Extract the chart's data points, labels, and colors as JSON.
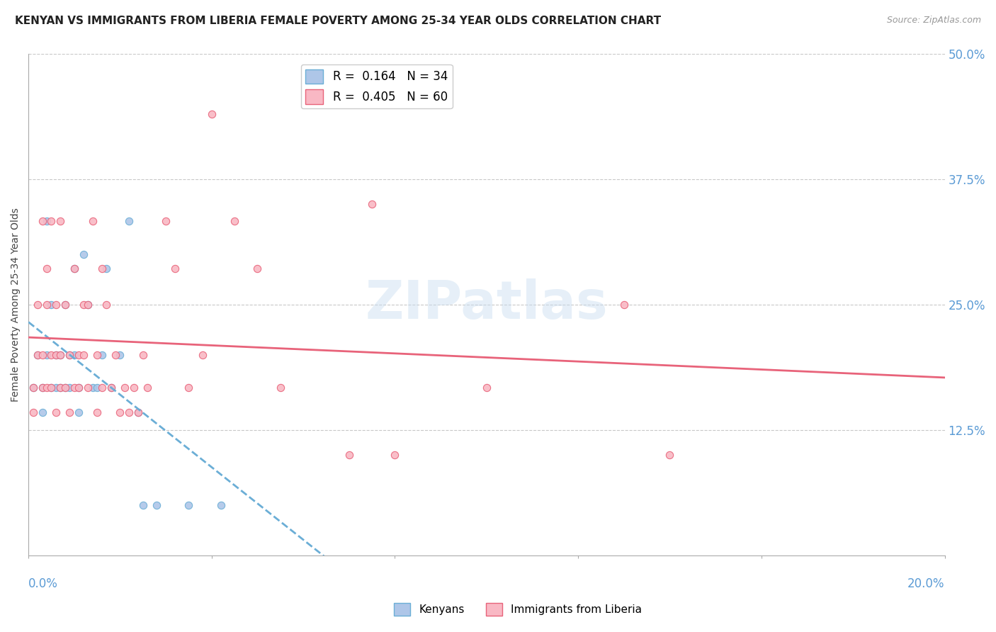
{
  "title": "KENYAN VS IMMIGRANTS FROM LIBERIA FEMALE POVERTY AMONG 25-34 YEAR OLDS CORRELATION CHART",
  "source": "Source: ZipAtlas.com",
  "ylabel": "Female Poverty Among 25-34 Year Olds",
  "watermark": "ZIPatlas",
  "xlim": [
    0.0,
    0.2
  ],
  "ylim": [
    0.0,
    0.5
  ],
  "yticks": [
    0.125,
    0.25,
    0.375,
    0.5
  ],
  "ytick_labels": [
    "12.5%",
    "25.0%",
    "37.5%",
    "50.0%"
  ],
  "kenyan_color": "#aec6e8",
  "kenyan_edge": "#6baed6",
  "liberia_color": "#f9b8c4",
  "liberia_edge": "#e8637a",
  "kenyan_scatter": [
    [
      0.001,
      0.167
    ],
    [
      0.002,
      0.2
    ],
    [
      0.003,
      0.143
    ],
    [
      0.003,
      0.167
    ],
    [
      0.004,
      0.333
    ],
    [
      0.004,
      0.2
    ],
    [
      0.005,
      0.167
    ],
    [
      0.005,
      0.25
    ],
    [
      0.006,
      0.2
    ],
    [
      0.006,
      0.167
    ],
    [
      0.007,
      0.167
    ],
    [
      0.007,
      0.2
    ],
    [
      0.008,
      0.25
    ],
    [
      0.008,
      0.167
    ],
    [
      0.009,
      0.2
    ],
    [
      0.009,
      0.167
    ],
    [
      0.01,
      0.286
    ],
    [
      0.01,
      0.2
    ],
    [
      0.011,
      0.167
    ],
    [
      0.011,
      0.143
    ],
    [
      0.012,
      0.3
    ],
    [
      0.013,
      0.25
    ],
    [
      0.014,
      0.167
    ],
    [
      0.015,
      0.167
    ],
    [
      0.016,
      0.2
    ],
    [
      0.017,
      0.286
    ],
    [
      0.018,
      0.167
    ],
    [
      0.02,
      0.2
    ],
    [
      0.022,
      0.333
    ],
    [
      0.024,
      0.143
    ],
    [
      0.025,
      0.05
    ],
    [
      0.028,
      0.05
    ],
    [
      0.035,
      0.05
    ],
    [
      0.042,
      0.05
    ]
  ],
  "liberia_scatter": [
    [
      0.001,
      0.143
    ],
    [
      0.001,
      0.167
    ],
    [
      0.002,
      0.2
    ],
    [
      0.002,
      0.25
    ],
    [
      0.003,
      0.333
    ],
    [
      0.003,
      0.167
    ],
    [
      0.003,
      0.2
    ],
    [
      0.004,
      0.167
    ],
    [
      0.004,
      0.25
    ],
    [
      0.004,
      0.286
    ],
    [
      0.005,
      0.333
    ],
    [
      0.005,
      0.167
    ],
    [
      0.005,
      0.2
    ],
    [
      0.006,
      0.2
    ],
    [
      0.006,
      0.143
    ],
    [
      0.006,
      0.25
    ],
    [
      0.007,
      0.167
    ],
    [
      0.007,
      0.2
    ],
    [
      0.007,
      0.333
    ],
    [
      0.008,
      0.25
    ],
    [
      0.008,
      0.167
    ],
    [
      0.009,
      0.143
    ],
    [
      0.009,
      0.2
    ],
    [
      0.01,
      0.167
    ],
    [
      0.01,
      0.286
    ],
    [
      0.011,
      0.2
    ],
    [
      0.011,
      0.167
    ],
    [
      0.012,
      0.25
    ],
    [
      0.012,
      0.2
    ],
    [
      0.013,
      0.167
    ],
    [
      0.013,
      0.25
    ],
    [
      0.014,
      0.333
    ],
    [
      0.015,
      0.2
    ],
    [
      0.015,
      0.143
    ],
    [
      0.016,
      0.286
    ],
    [
      0.016,
      0.167
    ],
    [
      0.017,
      0.25
    ],
    [
      0.018,
      0.167
    ],
    [
      0.019,
      0.2
    ],
    [
      0.02,
      0.143
    ],
    [
      0.021,
      0.167
    ],
    [
      0.022,
      0.143
    ],
    [
      0.023,
      0.167
    ],
    [
      0.024,
      0.143
    ],
    [
      0.025,
      0.2
    ],
    [
      0.026,
      0.167
    ],
    [
      0.03,
      0.333
    ],
    [
      0.032,
      0.286
    ],
    [
      0.035,
      0.167
    ],
    [
      0.038,
      0.2
    ],
    [
      0.04,
      0.44
    ],
    [
      0.045,
      0.333
    ],
    [
      0.05,
      0.286
    ],
    [
      0.055,
      0.167
    ],
    [
      0.07,
      0.1
    ],
    [
      0.075,
      0.35
    ],
    [
      0.08,
      0.1
    ],
    [
      0.1,
      0.167
    ],
    [
      0.13,
      0.25
    ],
    [
      0.14,
      0.1
    ]
  ],
  "background_color": "#ffffff",
  "grid_color": "#c8c8c8",
  "tick_color": "#5b9bd5",
  "title_fontsize": 11
}
